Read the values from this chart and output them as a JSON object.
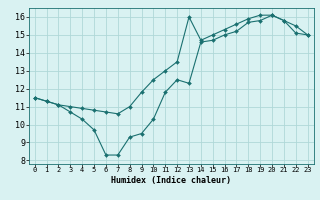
{
  "title": "",
  "xlabel": "Humidex (Indice chaleur)",
  "background_color": "#d9f2f2",
  "grid_color": "#b0d8d8",
  "line_color": "#1a7070",
  "xlim": [
    -0.5,
    23.5
  ],
  "ylim": [
    7.8,
    16.5
  ],
  "xticks": [
    0,
    1,
    2,
    3,
    4,
    5,
    6,
    7,
    8,
    9,
    10,
    11,
    12,
    13,
    14,
    15,
    16,
    17,
    18,
    19,
    20,
    21,
    22,
    23
  ],
  "yticks": [
    8,
    9,
    10,
    11,
    12,
    13,
    14,
    15,
    16
  ],
  "line1_x": [
    0,
    1,
    2,
    3,
    4,
    5,
    6,
    7,
    8,
    9,
    10,
    11,
    12,
    13,
    14,
    15,
    16,
    17,
    18,
    19,
    20,
    21,
    22,
    23
  ],
  "line1_y": [
    11.5,
    11.3,
    11.1,
    10.7,
    10.3,
    9.7,
    8.3,
    8.3,
    9.3,
    9.5,
    10.3,
    11.8,
    12.5,
    12.3,
    14.6,
    14.7,
    15.0,
    15.2,
    15.7,
    15.8,
    16.1,
    15.8,
    15.1,
    15.0
  ],
  "line2_x": [
    0,
    1,
    2,
    3,
    4,
    5,
    6,
    7,
    8,
    9,
    10,
    11,
    12,
    13,
    14,
    15,
    16,
    17,
    18,
    19,
    20,
    21,
    22,
    23
  ],
  "line2_y": [
    11.5,
    11.3,
    11.1,
    11.0,
    10.9,
    10.8,
    10.7,
    10.6,
    11.0,
    11.8,
    12.5,
    13.0,
    13.5,
    16.0,
    14.7,
    15.0,
    15.3,
    15.6,
    15.9,
    16.1,
    16.1,
    15.8,
    15.5,
    15.0
  ],
  "marker_size": 2.0,
  "linewidth": 0.8,
  "xlabel_fontsize": 6,
  "tick_fontsize": 5
}
